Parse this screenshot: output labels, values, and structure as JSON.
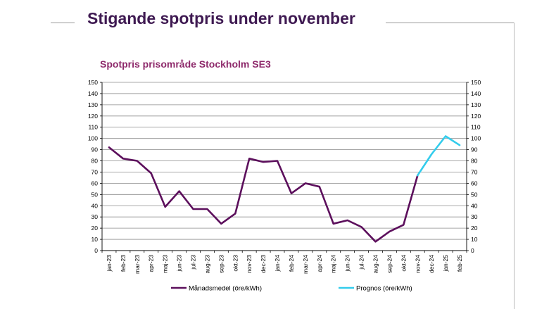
{
  "slide": {
    "title": "Stigande spotpris under november"
  },
  "colors": {
    "title": "#3f1a52",
    "chart_title": "#8e2a6b",
    "actual_series": "#5c0f5c",
    "forecast_series": "#33ccec",
    "gridline": "#8c8c8c"
  },
  "chart_data": {
    "type": "line",
    "title": "Spotpris prisområde Stockholm SE3",
    "xlabel": "",
    "ylabel": "",
    "ylim": [
      0,
      150
    ],
    "yticks": [
      0,
      10,
      20,
      30,
      40,
      50,
      60,
      70,
      80,
      90,
      100,
      110,
      120,
      130,
      140,
      150
    ],
    "secondary_yaxis": true,
    "grid": true,
    "legend_position": "bottom",
    "categories": [
      "jan-23",
      "feb-23",
      "mar-23",
      "apr-23",
      "maj-23",
      "jun-23",
      "jul-23",
      "aug-23",
      "sep-23",
      "okt-23",
      "nov-23",
      "dec-23",
      "jan-24",
      "feb-24",
      "mar-24",
      "apr-24",
      "maj-24",
      "jun-24",
      "jul-24",
      "aug-24",
      "sep-24",
      "okt-24",
      "nov-24",
      "dec-24",
      "jan-25",
      "feb-25"
    ],
    "series": [
      {
        "name": "Månadsmedel (öre/kWh)",
        "color": "#5c0f5c",
        "values": [
          92,
          82,
          80,
          69,
          39,
          53,
          37,
          37,
          24,
          33,
          82,
          79,
          80,
          51,
          60,
          57,
          24,
          27,
          21,
          8,
          17,
          23,
          67,
          null,
          null,
          null
        ]
      },
      {
        "name": "Prognos (öre/kWh)",
        "color": "#33ccec",
        "values": [
          null,
          null,
          null,
          null,
          null,
          null,
          null,
          null,
          null,
          null,
          null,
          null,
          null,
          null,
          null,
          null,
          null,
          null,
          null,
          null,
          null,
          null,
          67,
          86,
          102,
          94
        ]
      }
    ]
  }
}
